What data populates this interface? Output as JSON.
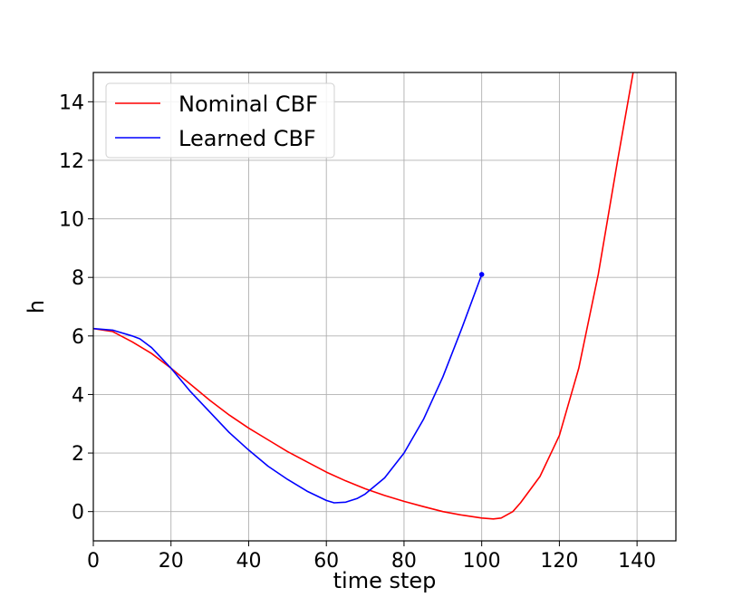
{
  "chart_data": {
    "type": "line",
    "xlabel": "time step",
    "ylabel": "h",
    "xlim": [
      0,
      150
    ],
    "ylim": [
      -1,
      15
    ],
    "xticks": [
      0,
      20,
      40,
      60,
      80,
      100,
      120,
      140
    ],
    "yticks": [
      0,
      2,
      4,
      6,
      8,
      10,
      12,
      14
    ],
    "grid": true,
    "legend_position": "top-left",
    "series": [
      {
        "name": "Nominal CBF",
        "color": "#ff0000",
        "x": [
          0,
          5,
          10,
          15,
          20,
          25,
          30,
          35,
          40,
          45,
          50,
          55,
          60,
          65,
          70,
          75,
          80,
          85,
          90,
          95,
          100,
          103,
          105,
          108,
          110,
          115,
          120,
          125,
          130,
          135,
          139
        ],
        "y": [
          6.25,
          6.15,
          5.8,
          5.4,
          4.9,
          4.35,
          3.8,
          3.3,
          2.85,
          2.45,
          2.05,
          1.7,
          1.35,
          1.05,
          0.78,
          0.55,
          0.35,
          0.17,
          0.0,
          -0.12,
          -0.22,
          -0.25,
          -0.22,
          0.0,
          0.3,
          1.2,
          2.6,
          4.9,
          8.1,
          12.0,
          15.0
        ]
      },
      {
        "name": "Learned CBF",
        "color": "#0000ff",
        "x": [
          0,
          5,
          10,
          12,
          15,
          20,
          25,
          30,
          35,
          40,
          45,
          50,
          55,
          60,
          62,
          65,
          68,
          70,
          75,
          80,
          85,
          90,
          95,
          100
        ],
        "y": [
          6.25,
          6.2,
          6.0,
          5.9,
          5.6,
          4.9,
          4.1,
          3.4,
          2.7,
          2.1,
          1.55,
          1.1,
          0.7,
          0.38,
          0.3,
          0.32,
          0.45,
          0.6,
          1.15,
          2.0,
          3.15,
          4.6,
          6.3,
          8.1
        ]
      }
    ],
    "markers": [
      {
        "series": "Learned CBF",
        "x": 100,
        "y": 8.1
      }
    ]
  }
}
